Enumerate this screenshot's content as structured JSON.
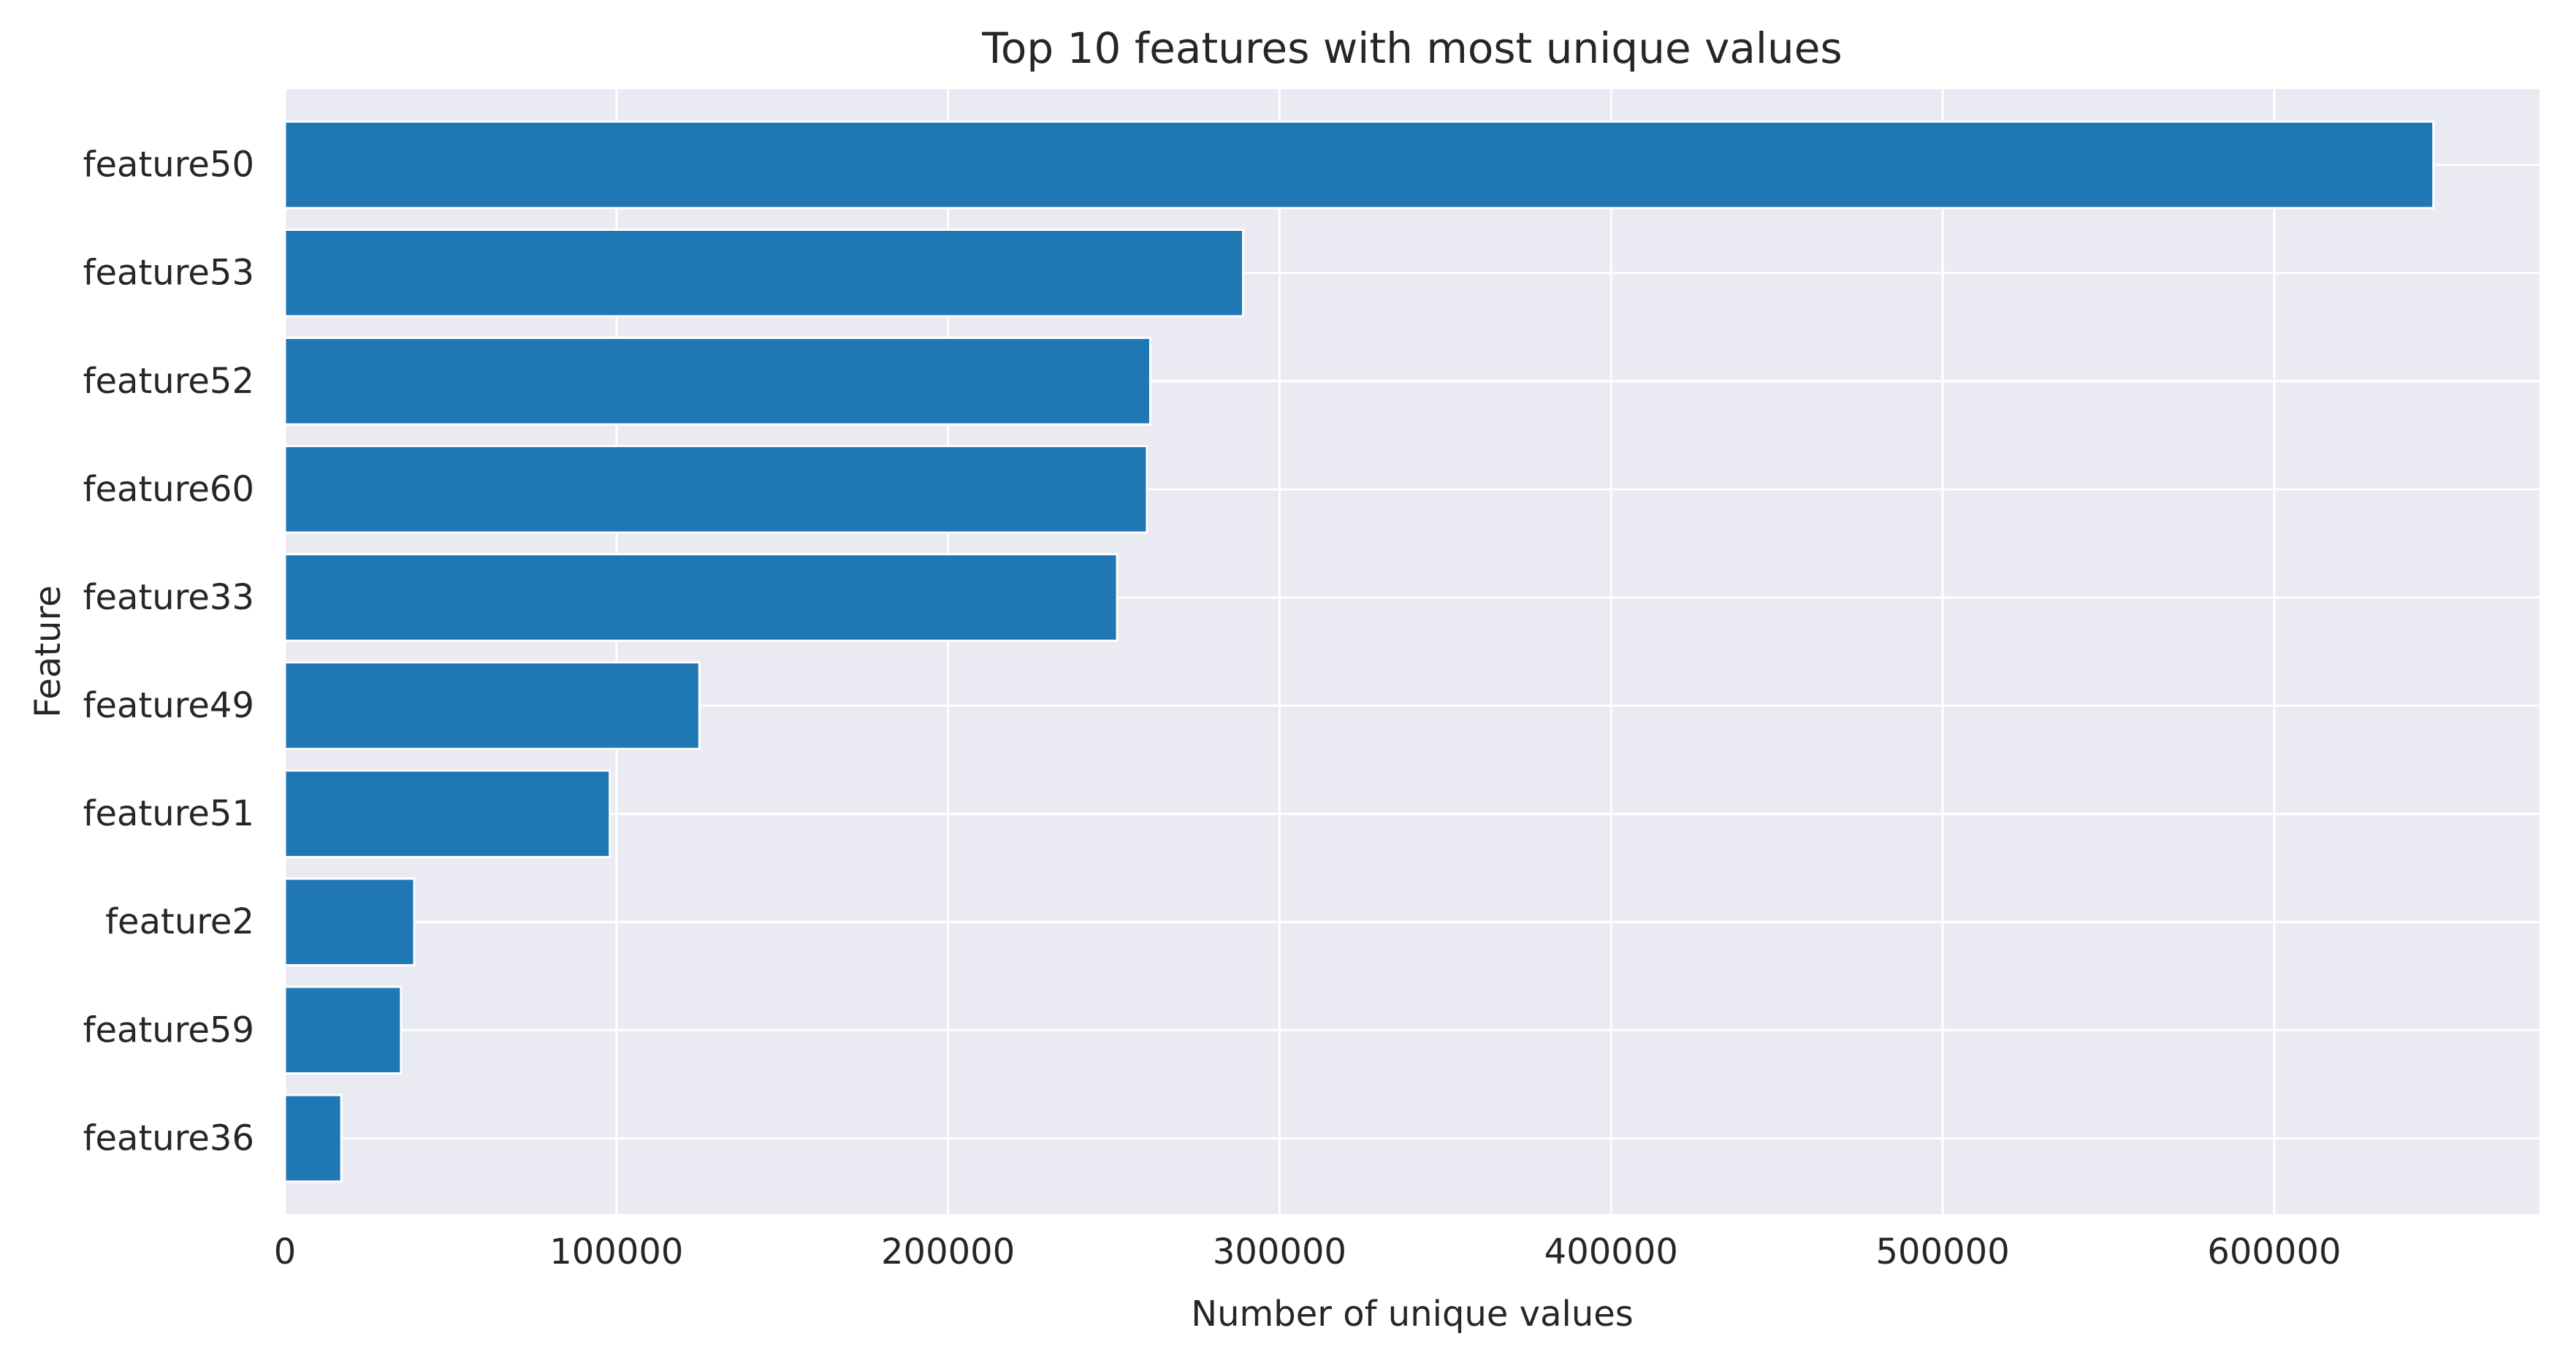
{
  "chart_data": {
    "type": "bar",
    "orientation": "horizontal",
    "title": "Top 10 features with most unique values",
    "xlabel": "Number of unique values",
    "ylabel": "Feature",
    "categories": [
      "feature50",
      "feature53",
      "feature52",
      "feature60",
      "feature33",
      "feature49",
      "feature51",
      "feature2",
      "feature59",
      "feature36"
    ],
    "values": [
      648000,
      289000,
      261000,
      260000,
      251000,
      125000,
      98000,
      39000,
      35000,
      17000
    ],
    "xlim": [
      0,
      680000
    ],
    "xticks": [
      0,
      100000,
      200000,
      300000,
      400000,
      500000,
      600000
    ],
    "xtick_labels": [
      "0",
      "100000",
      "200000",
      "300000",
      "400000",
      "500000",
      "600000"
    ],
    "grid": true,
    "colors": {
      "bar": "#1f77b4",
      "plot_background": "#eaeaf2",
      "grid": "#ffffff",
      "text": "#262626"
    }
  }
}
